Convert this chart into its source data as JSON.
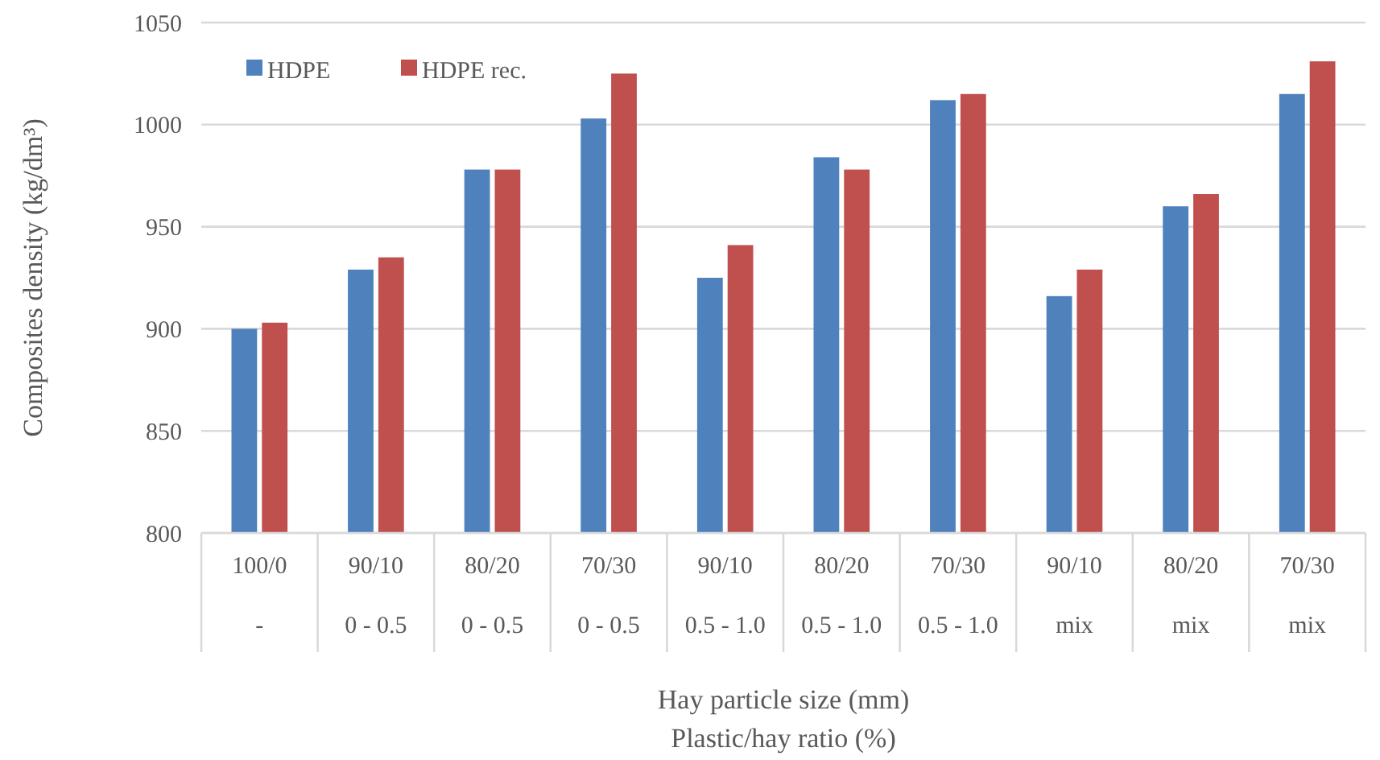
{
  "chart_data": {
    "type": "bar",
    "xlabel": "Hay particle size (mm)\nPlastic/hay ratio (%)",
    "ylabel": "Composites density (kg/dm³)",
    "categories": [
      "100/0\n-",
      "90/10\n0 - 0.5",
      "80/20\n0 - 0.5",
      "70/30\n0 - 0.5",
      "90/10\n0.5 - 1.0",
      "80/20\n0.5 - 1.0",
      "70/30\n0.5 - 1.0",
      "90/10\nmix",
      "80/20\nmix",
      "70/30\nmix"
    ],
    "series": [
      {
        "name": "HDPE",
        "color": "#4f81bd",
        "values": [
          900,
          929,
          978,
          1003,
          925,
          984,
          1012,
          916,
          960,
          1015
        ]
      },
      {
        "name": "HDPE rec.",
        "color": "#c0504d",
        "values": [
          903,
          935,
          978,
          1025,
          941,
          978,
          1015,
          929,
          966,
          1031
        ]
      }
    ],
    "ylim": [
      800,
      1050
    ],
    "yticks": [
      800,
      850,
      900,
      950,
      1000,
      1050
    ],
    "grid": "y",
    "legend": "top left"
  }
}
